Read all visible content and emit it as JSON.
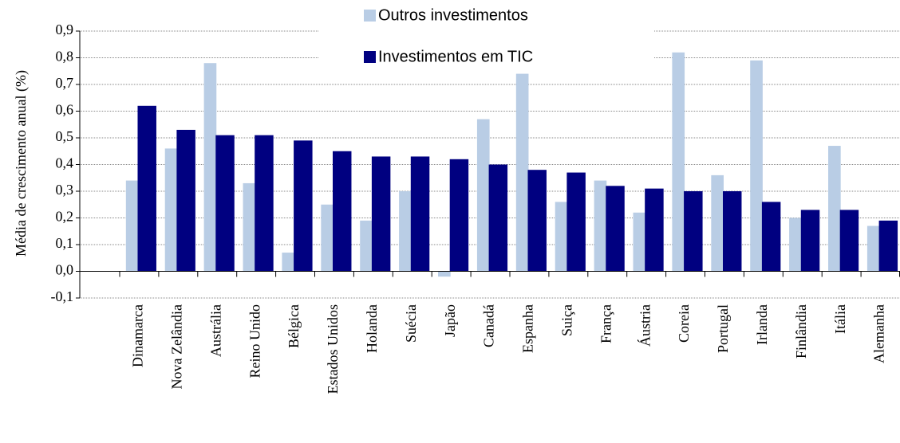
{
  "chart_data": {
    "type": "bar",
    "y_label": "Média de crescimento anual (%)",
    "categories": [
      "Dinamarca",
      "Nova Zelândia",
      "Austrália",
      "Reino Unido",
      "Bélgica",
      "Estados Unidos",
      "Holanda",
      "Suécia",
      "Japão",
      "Canadá",
      "Espanha",
      "Suiça",
      "França",
      "Áustria",
      "Coreia",
      "Portugal",
      "Irlanda",
      "Finlândia",
      "Itália",
      "Alemanha"
    ],
    "series": [
      {
        "name": "Outros investimentos",
        "color": "#b9cde5",
        "values": [
          0.34,
          0.46,
          0.78,
          0.33,
          0.07,
          0.25,
          0.19,
          0.3,
          -0.02,
          0.57,
          0.74,
          0.26,
          0.34,
          0.22,
          0.82,
          0.36,
          0.79,
          0.2,
          0.47,
          0.17
        ]
      },
      {
        "name": "Investimentos em TIC",
        "color": "#000080",
        "values": [
          0.62,
          0.53,
          0.51,
          0.51,
          0.49,
          0.45,
          0.43,
          0.43,
          0.42,
          0.4,
          0.38,
          0.37,
          0.32,
          0.31,
          0.3,
          0.3,
          0.26,
          0.23,
          0.23,
          0.19
        ]
      }
    ],
    "ylim": [
      -0.1,
      0.9
    ],
    "yticks": [
      {
        "value": -0.1,
        "label": "-0,1"
      },
      {
        "value": 0,
        "label": "0,0"
      },
      {
        "value": 0.1,
        "label": "0,1"
      },
      {
        "value": 0.2,
        "label": "0,2"
      },
      {
        "value": 0.3,
        "label": "0,3"
      },
      {
        "value": 0.4,
        "label": "0,4"
      },
      {
        "value": 0.5,
        "label": "0,5"
      },
      {
        "value": 0.6,
        "label": "0,6"
      },
      {
        "value": 0.7,
        "label": "0,7"
      },
      {
        "value": 0.8,
        "label": "0,8"
      },
      {
        "value": 0.9,
        "label": "0,9"
      }
    ],
    "grid": true
  }
}
